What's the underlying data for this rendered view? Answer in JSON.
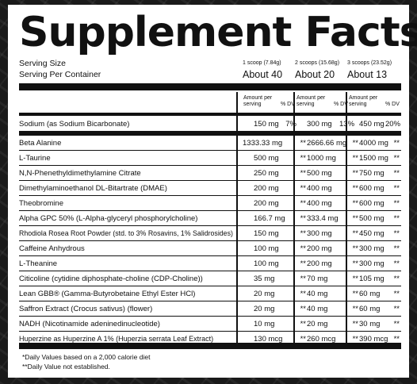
{
  "title": "Supplement Facts",
  "serving_size_label": "Serving Size",
  "serving_per_container_label": "Serving Per Container",
  "servings": [
    {
      "size": "1 scoop (7.84g)",
      "per_container": "About 40"
    },
    {
      "size": "2 scoops (15.68g)",
      "per_container": "About 20"
    },
    {
      "size": "3 scoops (23.52g)",
      "per_container": "About 13"
    }
  ],
  "amount_header": {
    "line1": "Amount per",
    "line2": "serving",
    "dv": "% DV"
  },
  "rows": [
    {
      "name": "Sodium (as Sodium Bicarbonate)",
      "v1": "150 mg",
      "d1": "7%",
      "v2": "300 mg",
      "d2": "13%",
      "v3": "450 mg",
      "d3": "20%"
    },
    {
      "name": "Beta Alanine",
      "v1": "1333.33 mg",
      "d1": "**",
      "v2": "2666.66 mg",
      "d2": "**",
      "v3": "4000 mg",
      "d3": "**"
    },
    {
      "name": "L-Taurine",
      "v1": "500 mg",
      "d1": "**",
      "v2": "1000 mg",
      "d2": "**",
      "v3": "1500 mg",
      "d3": "**"
    },
    {
      "name": "N,N-Phenethyldimethylamine Citrate",
      "v1": "250 mg",
      "d1": "**",
      "v2": "500 mg",
      "d2": "**",
      "v3": "750 mg",
      "d3": "**"
    },
    {
      "name": "Dimethylaminoethanol DL-Bitartrate (DMAE)",
      "v1": "200 mg",
      "d1": "**",
      "v2": "400 mg",
      "d2": "**",
      "v3": "600 mg",
      "d3": "**"
    },
    {
      "name": "Theobromine",
      "v1": "200 mg",
      "d1": "**",
      "v2": "400 mg",
      "d2": "**",
      "v3": "600 mg",
      "d3": "**"
    },
    {
      "name": "Alpha GPC 50% (L-Alpha-glyceryl phosphorylcholine)",
      "v1": "166.7 mg",
      "d1": "**",
      "v2": "333.4 mg",
      "d2": "**",
      "v3": "500 mg",
      "d3": "**"
    },
    {
      "name": "Rhodiola Rosea Root Powder (std. to 3% Rosavins, 1% Salidrosides)",
      "v1": "150 mg",
      "d1": "**",
      "v2": "300 mg",
      "d2": "**",
      "v3": "450 mg",
      "d3": "**"
    },
    {
      "name": "Caffeine Anhydrous",
      "v1": "100 mg",
      "d1": "**",
      "v2": "200 mg",
      "d2": "**",
      "v3": "300 mg",
      "d3": "**"
    },
    {
      "name": "L-Theanine",
      "v1": "100 mg",
      "d1": "**",
      "v2": "200 mg",
      "d2": "**",
      "v3": "300 mg",
      "d3": "**"
    },
    {
      "name": "Citicoline (cytidine diphosphate-choline (CDP-Choline))",
      "v1": "35 mg",
      "d1": "**",
      "v2": "70 mg",
      "d2": "**",
      "v3": "105 mg",
      "d3": "**"
    },
    {
      "name": "Lean GBB® (Gamma-Butyrobetaine Ethyl Ester HCl)",
      "v1": "20 mg",
      "d1": "**",
      "v2": "40 mg",
      "d2": "**",
      "v3": "60 mg",
      "d3": "**"
    },
    {
      "name": "Saffron Extract (Crocus sativus) (flower)",
      "v1": "20 mg",
      "d1": "**",
      "v2": "40 mg",
      "d2": "**",
      "v3": "60 mg",
      "d3": "**"
    },
    {
      "name": "NADH (Nicotinamide adeninedinucleotide)",
      "v1": "10 mg",
      "d1": "**",
      "v2": "20 mg",
      "d2": "**",
      "v3": "30 mg",
      "d3": "**"
    },
    {
      "name": "Huperzine as Huperzine A 1% (Huperzia serrata Leaf Extract)",
      "v1": "130 mcg",
      "d1": "**",
      "v2": "260 mcg",
      "d2": "**",
      "v3": "390 mcg",
      "d3": "**"
    }
  ],
  "footnotes": [
    "*Daily Values based on a 2,000 calorie diet",
    "**Daily Value not established."
  ]
}
